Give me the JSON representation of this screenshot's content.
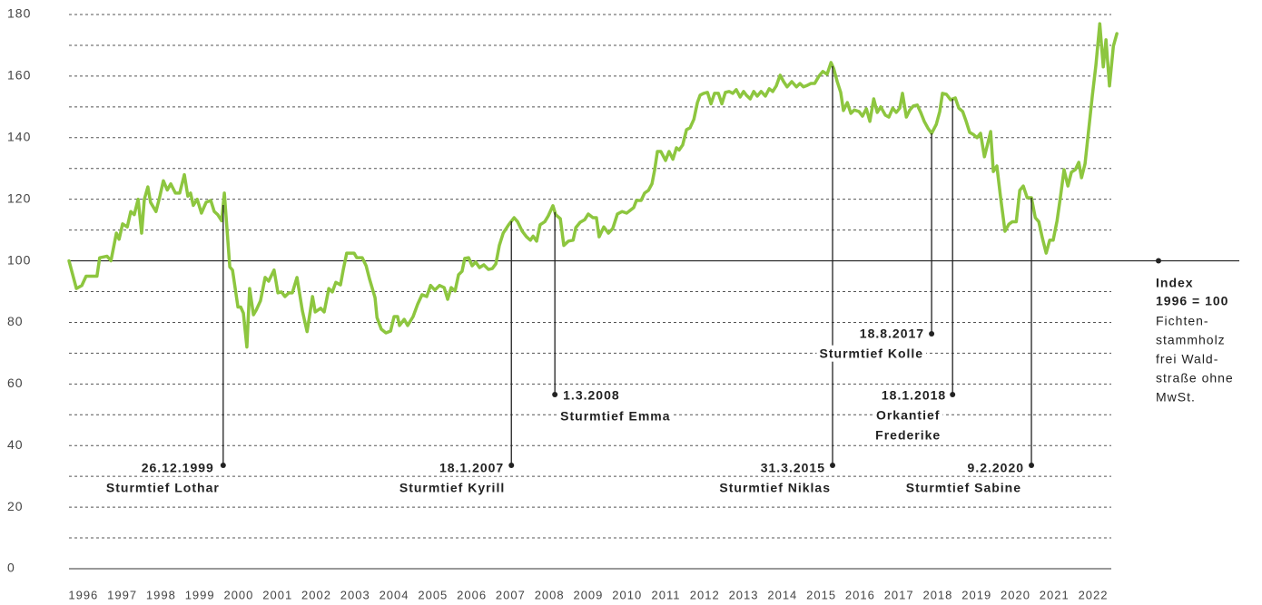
{
  "chart_data": {
    "type": "line",
    "x": [
      1996.0,
      1996.19,
      1996.33,
      1996.44,
      1996.72,
      1996.79,
      1996.98,
      1997.08,
      1997.22,
      1997.29,
      1997.38,
      1997.5,
      1997.59,
      1997.68,
      1997.78,
      1997.87,
      1997.94,
      1998.03,
      1998.1,
      1998.24,
      1998.34,
      1998.43,
      1998.53,
      1998.62,
      1998.74,
      1998.85,
      1998.97,
      1999.06,
      1999.13,
      1999.2,
      1999.3,
      1999.41,
      1999.53,
      1999.65,
      1999.74,
      1999.83,
      1999.93,
      2000.0,
      2000.14,
      2000.21,
      2000.35,
      2000.42,
      2000.49,
      2000.58,
      2000.65,
      2000.75,
      2000.82,
      2000.93,
      2001.05,
      2001.14,
      2001.28,
      2001.38,
      2001.47,
      2001.56,
      2001.66,
      2001.75,
      2001.87,
      2002.01,
      2002.13,
      2002.27,
      2002.34,
      2002.48,
      2002.57,
      2002.69,
      2002.78,
      2002.87,
      2002.99,
      2003.06,
      2003.15,
      2003.34,
      2003.41,
      2003.55,
      2003.65,
      2003.74,
      2003.88,
      2003.93,
      2004.04,
      2004.16,
      2004.28,
      2004.37,
      2004.46,
      2004.51,
      2004.63,
      2004.72,
      2004.86,
      2004.98,
      2005.09,
      2005.21,
      2005.31,
      2005.42,
      2005.54,
      2005.66,
      2005.75,
      2005.84,
      2005.94,
      2006.03,
      2006.12,
      2006.19,
      2006.29,
      2006.38,
      2006.47,
      2006.57,
      2006.68,
      2006.8,
      2006.9,
      2006.99,
      2007.08,
      2007.18,
      2007.32,
      2007.46,
      2007.55,
      2007.67,
      2007.78,
      2007.88,
      2007.95,
      2008.04,
      2008.13,
      2008.25,
      2008.34,
      2008.46,
      2008.53,
      2008.65,
      2008.74,
      2008.86,
      2008.98,
      2009.05,
      2009.16,
      2009.28,
      2009.37,
      2009.49,
      2009.58,
      2009.65,
      2009.77,
      2009.89,
      2010.0,
      2010.12,
      2010.24,
      2010.36,
      2010.45,
      2010.54,
      2010.61,
      2010.73,
      2010.82,
      2010.92,
      2011.01,
      2011.08,
      2011.15,
      2011.24,
      2011.36,
      2011.45,
      2011.55,
      2011.64,
      2011.71,
      2011.8,
      2011.9,
      2011.99,
      2012.09,
      2012.18,
      2012.25,
      2012.34,
      2012.44,
      2012.53,
      2012.62,
      2012.72,
      2012.81,
      2012.9,
      2013.0,
      2013.09,
      2013.18,
      2013.28,
      2013.37,
      2013.44,
      2013.54,
      2013.63,
      2013.72,
      2013.82,
      2013.93,
      2014.03,
      2014.12,
      2014.21,
      2014.31,
      2014.4,
      2014.49,
      2014.61,
      2014.73,
      2014.82,
      2014.91,
      2015.01,
      2015.1,
      2015.2,
      2015.31,
      2015.41,
      2015.52,
      2015.62,
      2015.69,
      2015.78,
      2015.87,
      2015.94,
      2016.04,
      2016.13,
      2016.22,
      2016.34,
      2016.43,
      2016.53,
      2016.62,
      2016.72,
      2016.81,
      2016.9,
      2017.02,
      2017.11,
      2017.21,
      2017.3,
      2017.39,
      2017.46,
      2017.56,
      2017.65,
      2017.74,
      2017.84,
      2017.93,
      2018.02,
      2018.12,
      2018.21,
      2018.33,
      2018.42,
      2018.49,
      2018.59,
      2018.7,
      2018.82,
      2018.91,
      2019.01,
      2019.1,
      2019.19,
      2019.29,
      2019.38,
      2019.47,
      2019.57,
      2019.64,
      2019.73,
      2019.8,
      2019.89,
      2019.99,
      2020.1,
      2020.2,
      2020.29,
      2020.39,
      2020.48,
      2020.57,
      2020.67,
      2020.78,
      2020.88,
      2020.97,
      2021.06,
      2021.16,
      2021.25,
      2021.34,
      2021.44,
      2021.53,
      2021.62,
      2021.72,
      2021.81,
      2021.91,
      2022.0,
      2022.07,
      2022.16,
      2022.26,
      2022.35,
      2022.44,
      2022.54,
      2022.63,
      2022.7,
      2022.79,
      2022.89,
      2022.98
    ],
    "series": [
      {
        "color": "#8dc63f",
        "values": [
          100,
          91,
          92,
          95,
          95,
          101,
          101.5,
          100,
          109,
          107,
          112,
          111,
          116,
          115,
          120,
          109,
          120,
          124,
          119,
          116,
          121,
          126,
          123,
          125,
          122,
          122,
          128,
          121,
          122,
          118,
          120,
          115.5,
          119,
          119.6,
          116,
          115,
          113,
          122,
          98,
          97,
          85,
          85,
          83,
          72,
          91,
          82.5,
          84,
          87,
          94.6,
          93.4,
          97,
          89.6,
          89.9,
          88.4,
          89.6,
          89.6,
          94.6,
          83.7,
          77,
          88.4,
          83.4,
          84.6,
          83.4,
          91,
          89.9,
          93,
          92.2,
          97,
          102.5,
          102.5,
          101,
          101,
          98.4,
          94,
          88,
          81.6,
          77.8,
          76.6,
          77.2,
          81.9,
          81.9,
          79,
          81,
          79,
          81.9,
          86,
          89,
          88.4,
          92,
          90.5,
          92,
          91.3,
          87.5,
          91.3,
          90.2,
          95.5,
          96.6,
          100.8,
          101,
          98.4,
          99.6,
          97.8,
          98.7,
          97.2,
          97.5,
          99,
          105,
          109,
          111.7,
          114,
          112.7,
          109.6,
          107.8,
          106.7,
          108,
          106.4,
          111.7,
          112.7,
          114.6,
          117.9,
          115,
          113.7,
          105,
          106.4,
          106.7,
          110.8,
          112.5,
          113.4,
          115.2,
          114,
          114,
          107.8,
          111,
          109,
          110.5,
          115.2,
          116,
          115.5,
          116.4,
          117.3,
          119.6,
          119.6,
          122,
          122.9,
          125,
          129.6,
          135.5,
          135.5,
          132.6,
          135.5,
          133,
          136.7,
          136,
          137.6,
          142.6,
          143.2,
          146,
          151.4,
          153.8,
          154.4,
          154.7,
          151,
          154.4,
          154.4,
          151,
          154.7,
          155,
          154.4,
          155.6,
          153.2,
          155,
          153.8,
          152.6,
          155,
          153.5,
          155,
          153.5,
          155.9,
          155,
          156.8,
          160.3,
          158.2,
          156.5,
          158.2,
          156.5,
          157.6,
          156.5,
          157,
          157.6,
          157.6,
          160,
          161.5,
          160.6,
          164.4,
          162.4,
          158.2,
          154.7,
          148.8,
          151.4,
          147.9,
          149,
          148.5,
          147,
          149.4,
          145.3,
          152.6,
          148.2,
          150,
          147.3,
          146.7,
          149.6,
          148.2,
          149.6,
          154.4,
          146.7,
          149,
          150.3,
          150.6,
          148.2,
          145.3,
          143,
          141.4,
          144.3,
          148.5,
          154.4,
          154.1,
          152.3,
          152.9,
          149.6,
          148.5,
          145.3,
          141.7,
          141,
          140,
          141.4,
          133.8,
          137.3,
          142,
          129,
          130.8,
          120.2,
          109.6,
          111.9,
          112.7,
          112.7,
          122.9,
          124.3,
          120.5,
          120.5,
          114,
          112.7,
          107.5,
          102.5,
          106.7,
          106.7,
          113,
          121,
          129.6,
          124.3,
          128.8,
          129.6,
          132,
          127,
          131.5,
          143.2,
          153.8,
          163.5,
          177,
          163,
          171.8,
          156.8,
          169.7,
          173.8
        ]
      }
    ],
    "xlim": [
      1996,
      2023
    ],
    "xticks": [
      1996,
      1997,
      1998,
      1999,
      2000,
      2001,
      2002,
      2003,
      2004,
      2005,
      2006,
      2007,
      2008,
      2009,
      2010,
      2011,
      2012,
      2013,
      2014,
      2015,
      2016,
      2017,
      2018,
      2019,
      2020,
      2021,
      2022
    ],
    "ylim": [
      0,
      180
    ],
    "yticks": [
      0,
      20,
      40,
      60,
      80,
      100,
      120,
      140,
      160,
      180
    ],
    "minor_yticks": [
      10,
      30,
      50,
      70,
      90,
      110,
      130,
      150,
      170
    ],
    "grid": true,
    "reference_line": 100,
    "annotations": [
      {
        "date": "26.12.1999",
        "label": [
          "Sturmtief Lothar"
        ],
        "x": 1999.97
      },
      {
        "date": "18.1.2007",
        "label": [
          "Sturmtief Kyrill"
        ],
        "x": 2007.39
      },
      {
        "date": "1.3.2008",
        "label": [
          "Sturmtief Emma"
        ],
        "x": 2008.51
      },
      {
        "date": "31.3.2015",
        "label": [
          "Sturmtief Niklas"
        ],
        "x": 2015.66
      },
      {
        "date": "18.8.2017",
        "label": [
          "Sturmtief Kolle"
        ],
        "x": 2018.21
      },
      {
        "date": "18.1.2018",
        "label": [
          "Orkantief",
          "Frederike"
        ],
        "x": 2018.75
      },
      {
        "date": "9.2.2020",
        "label": [
          "Sturmtief Sabine"
        ],
        "x": 2020.78
      }
    ],
    "note": {
      "title": [
        "Index",
        "1996 = 100"
      ],
      "text": [
        "Fichten-",
        "stammholz",
        "frei Wald-",
        "straße ohne",
        "MwSt."
      ]
    }
  }
}
